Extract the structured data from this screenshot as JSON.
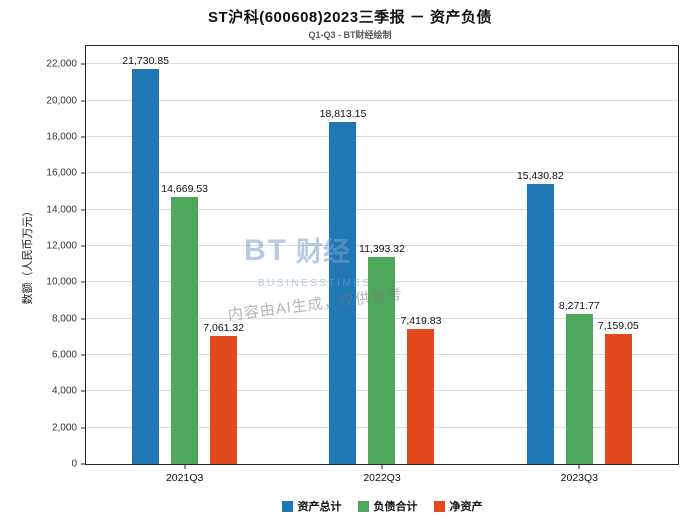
{
  "chart_data": {
    "type": "bar",
    "title": "ST沪科(600608)2023三季报 － 资产负债",
    "subtitle": "Q1-Q3 - BT财经绘制",
    "ylabel": "数额（人民币万元）",
    "xlabel": "",
    "categories": [
      "2021Q3",
      "2022Q3",
      "2023Q3"
    ],
    "series": [
      {
        "name": "资产总计",
        "color": "#1F77B4",
        "values": [
          21730.85,
          18813.15,
          15430.82
        ],
        "labels": [
          "21,730.85",
          "18,813.15",
          "15,430.82"
        ]
      },
      {
        "name": "负债合计",
        "color": "#4DA85C",
        "values": [
          14669.53,
          11393.32,
          8271.77
        ],
        "labels": [
          "14,669.53",
          "11,393.32",
          "8,271.77"
        ]
      },
      {
        "name": "净资产",
        "color": "#E2491D",
        "values": [
          7061.32,
          7419.83,
          7159.05
        ],
        "labels": [
          "7,061.32",
          "7,419.83",
          "7,159.05"
        ]
      }
    ],
    "ylim": [
      0,
      23000
    ],
    "yticks": [
      0,
      2000,
      4000,
      6000,
      8000,
      10000,
      12000,
      14000,
      16000,
      18000,
      20000,
      22000
    ],
    "grid": true,
    "legend_position": "bottom"
  },
  "watermark": {
    "logo_bt": "BT",
    "logo_cn": "财经",
    "logo_sub": "BUSINESSTIMES",
    "ai_note": "内容由AI生成，仅供参考"
  }
}
